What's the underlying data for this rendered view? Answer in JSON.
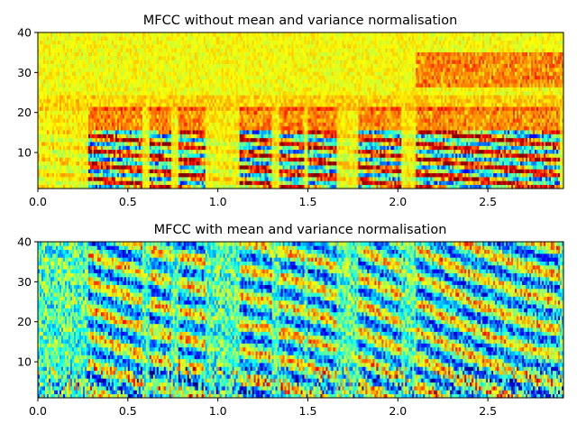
{
  "chart_data": [
    {
      "type": "heatmap",
      "title": "MFCC without mean and variance normalisation",
      "xlim": [
        0,
        2.92
      ],
      "ylim": [
        1,
        40
      ],
      "xticks": [
        "0.0",
        "0.5",
        "1.0",
        "1.5",
        "2.0",
        "2.5"
      ],
      "xtick_values": [
        0,
        0.5,
        1.0,
        1.5,
        2.0,
        2.5
      ],
      "yticks": [
        "10",
        "20",
        "30",
        "40"
      ],
      "ytick_values": [
        10,
        20,
        30,
        40
      ],
      "colormap": "jet",
      "dominant_color": "#ffff00",
      "rows": 40,
      "cols": 292
    },
    {
      "type": "heatmap",
      "title": "MFCC with mean and variance normalisation",
      "xlim": [
        0,
        2.92
      ],
      "ylim": [
        1,
        40
      ],
      "xticks": [
        "0.0",
        "0.5",
        "1.0",
        "1.5",
        "2.0",
        "2.5"
      ],
      "xtick_values": [
        0,
        0.5,
        1.0,
        1.5,
        2.0,
        2.5
      ],
      "yticks": [
        "10",
        "20",
        "30",
        "40"
      ],
      "ytick_values": [
        10,
        20,
        30,
        40
      ],
      "colormap": "jet",
      "dominant_color": "#a8ff50",
      "rows": 40,
      "cols": 292
    }
  ]
}
